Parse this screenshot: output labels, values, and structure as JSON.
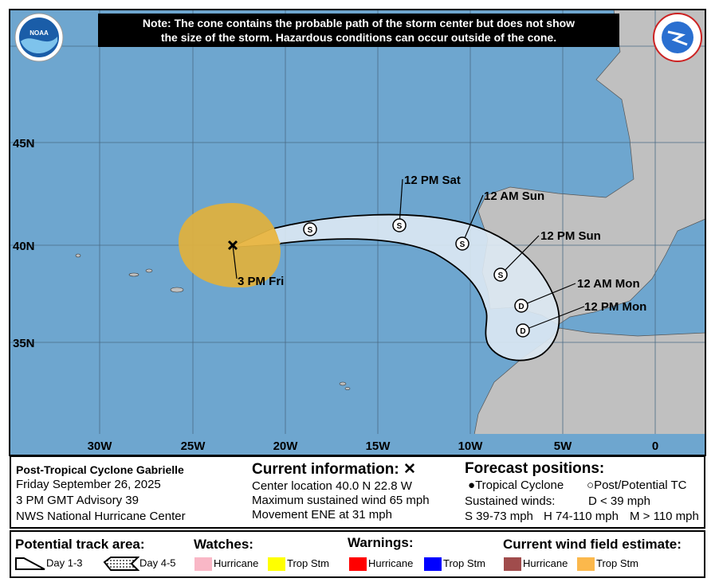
{
  "note": {
    "line1": "Note: The cone contains the probable path of the storm center but does not show",
    "line2": "the size of the storm. Hazardous conditions can occur outside of the cone."
  },
  "logos": {
    "left": "NOAA",
    "right": "NATIONAL WEATHER SERVICE"
  },
  "map": {
    "lat_labels": [
      "45N",
      "40N",
      "35N"
    ],
    "lon_labels": [
      "30W",
      "25W",
      "20W",
      "15W",
      "10W",
      "5W",
      "0"
    ],
    "colors": {
      "ocean": "#6ea6cf",
      "land": "#c0c0c0",
      "cone": "#dde9f3",
      "wind_ts": "#ddb03f"
    },
    "current_label": "3 PM Fri",
    "forecast_points": [
      {
        "label": "",
        "symbol": "S"
      },
      {
        "label": "12 PM Sat",
        "symbol": "S"
      },
      {
        "label": "12 AM Sun",
        "symbol": "S"
      },
      {
        "label": "12 PM Sun",
        "symbol": "S"
      },
      {
        "label": "12 AM Mon",
        "symbol": "D"
      },
      {
        "label": "12 PM Mon",
        "symbol": "D"
      }
    ]
  },
  "info": {
    "storm": "Post-Tropical Cyclone Gabrielle",
    "date": "Friday September 26, 2025",
    "advisory": "3 PM GMT Advisory 39",
    "center": "NWS National Hurricane Center"
  },
  "current": {
    "title": "Current information:",
    "icon": "x-icon",
    "location": "Center location 40.0 N 22.8 W",
    "wind": "Maximum sustained wind 65 mph",
    "movement": "Movement ENE at 31 mph"
  },
  "forecast": {
    "title": "Forecast positions:",
    "tc": "Tropical Cyclone",
    "ptc": "Post/Potential TC",
    "sustained": "Sustained winds:",
    "d": "D < 39 mph",
    "s": "S 39-73 mph",
    "h": "H 74-110 mph",
    "m": "M > 110 mph"
  },
  "legend": {
    "track_title": "Potential track area:",
    "day13": "Day 1-3",
    "day45": "Day 4-5",
    "watches_title": "Watches:",
    "warnings_title": "Warnings:",
    "wind_title": "Current wind field estimate:",
    "watch_hurricane": "Hurricane",
    "watch_ts": "Trop Stm",
    "warn_hurricane": "Hurricane",
    "warn_ts": "Trop Stm",
    "wind_hurricane": "Hurricane",
    "wind_ts": "Trop Stm",
    "colors": {
      "watch_hurricane": "#f9b7c6",
      "watch_ts": "#ffff00",
      "warn_hurricane": "#ff0000",
      "warn_ts": "#0000ff",
      "wind_hurricane": "#a04c4c",
      "wind_ts": "#fbb84c"
    }
  }
}
